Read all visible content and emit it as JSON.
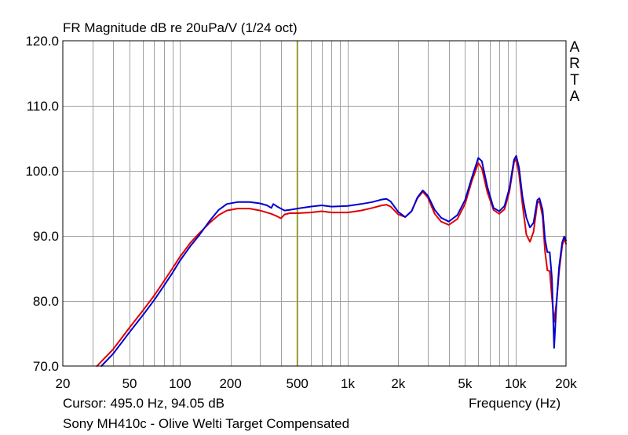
{
  "title": "FR Magnitude dB re 20uPa/V (1/24 oct)",
  "brand": "ARTA",
  "cursor_readout": "Cursor: 495.0 Hz, 94.05 dB",
  "caption": "Sony MH410c - Olive Welti Target Compensated",
  "colors": {
    "grid": "#a0a0a0",
    "cursor": "#a0a000",
    "series_red": "#e00000",
    "series_blue": "#0000d0"
  },
  "chart_data": {
    "type": "line",
    "title": "FR Magnitude dB re 20uPa/V (1/24 oct)",
    "xlabel": "Frequency (Hz)",
    "ylabel": "",
    "xscale": "log",
    "xlim": [
      20,
      20000
    ],
    "ylim": [
      70,
      120
    ],
    "grid": true,
    "x_tick_labels": [
      {
        "value": 20,
        "label": "20"
      },
      {
        "value": 50,
        "label": "50"
      },
      {
        "value": 100,
        "label": "100"
      },
      {
        "value": 200,
        "label": "200"
      },
      {
        "value": 500,
        "label": "500"
      },
      {
        "value": 1000,
        "label": "1k"
      },
      {
        "value": 2000,
        "label": "2k"
      },
      {
        "value": 5000,
        "label": "5k"
      },
      {
        "value": 10000,
        "label": "10k"
      },
      {
        "value": 20000,
        "label": "20k"
      }
    ],
    "y_tick_labels": [
      {
        "value": 70,
        "label": "70.0"
      },
      {
        "value": 80,
        "label": "80.0"
      },
      {
        "value": 90,
        "label": "90.0"
      },
      {
        "value": 100,
        "label": "100.0"
      },
      {
        "value": 110,
        "label": "110.0"
      },
      {
        "value": 120,
        "label": "120.0"
      }
    ],
    "cursor": {
      "x": 495.0,
      "y": 94.05
    },
    "series": [
      {
        "color": "#e00000",
        "points": [
          [
            32,
            70
          ],
          [
            40,
            72.6
          ],
          [
            50,
            75.9
          ],
          [
            60,
            78.5
          ],
          [
            70,
            80.8
          ],
          [
            80,
            83
          ],
          [
            90,
            85
          ],
          [
            100,
            86.8
          ],
          [
            115,
            88.9
          ],
          [
            130,
            90.4
          ],
          [
            150,
            92
          ],
          [
            170,
            93.2
          ],
          [
            190,
            93.9
          ],
          [
            220,
            94.2
          ],
          [
            260,
            94.2
          ],
          [
            300,
            93.9
          ],
          [
            350,
            93.4
          ],
          [
            380,
            93
          ],
          [
            400,
            92.7
          ],
          [
            420,
            93.3
          ],
          [
            450,
            93.5
          ],
          [
            500,
            93.5
          ],
          [
            600,
            93.6
          ],
          [
            700,
            93.8
          ],
          [
            800,
            93.6
          ],
          [
            1000,
            93.6
          ],
          [
            1200,
            93.9
          ],
          [
            1400,
            94.3
          ],
          [
            1600,
            94.7
          ],
          [
            1700,
            94.8
          ],
          [
            1800,
            94.5
          ],
          [
            2000,
            93.3
          ],
          [
            2200,
            92.9
          ],
          [
            2400,
            93.8
          ],
          [
            2600,
            95.8
          ],
          [
            2800,
            96.8
          ],
          [
            3000,
            95.9
          ],
          [
            3300,
            93.4
          ],
          [
            3600,
            92.2
          ],
          [
            4000,
            91.7
          ],
          [
            4500,
            92.6
          ],
          [
            5000,
            94.9
          ],
          [
            5500,
            98.5
          ],
          [
            6000,
            101.2
          ],
          [
            6300,
            100.4
          ],
          [
            6800,
            96.7
          ],
          [
            7400,
            94
          ],
          [
            8000,
            93.4
          ],
          [
            8600,
            94.1
          ],
          [
            9200,
            96.8
          ],
          [
            9800,
            101.3
          ],
          [
            10100,
            101.8
          ],
          [
            10500,
            99.5
          ],
          [
            11000,
            94.9
          ],
          [
            11600,
            90.2
          ],
          [
            12200,
            89.1
          ],
          [
            12800,
            90.6
          ],
          [
            13500,
            95
          ],
          [
            13900,
            95.4
          ],
          [
            14500,
            93
          ],
          [
            15000,
            87.6
          ],
          [
            15500,
            84.7
          ],
          [
            16000,
            84.6
          ],
          [
            16500,
            80.5
          ],
          [
            17000,
            76.8
          ],
          [
            17500,
            79.5
          ],
          [
            18200,
            84.5
          ],
          [
            19000,
            88.5
          ],
          [
            19500,
            89.6
          ],
          [
            20000,
            88.8
          ]
        ]
      },
      {
        "color": "#0000d0",
        "points": [
          [
            34,
            70
          ],
          [
            40,
            71.9
          ],
          [
            50,
            75.2
          ],
          [
            60,
            77.8
          ],
          [
            70,
            80.1
          ],
          [
            80,
            82.3
          ],
          [
            90,
            84.3
          ],
          [
            100,
            86.2
          ],
          [
            115,
            88.4
          ],
          [
            130,
            90.1
          ],
          [
            150,
            92.3
          ],
          [
            170,
            94
          ],
          [
            190,
            94.9
          ],
          [
            220,
            95.2
          ],
          [
            260,
            95.2
          ],
          [
            300,
            95
          ],
          [
            330,
            94.7
          ],
          [
            350,
            94.3
          ],
          [
            360,
            94.9
          ],
          [
            380,
            94.5
          ],
          [
            420,
            93.9
          ],
          [
            450,
            94
          ],
          [
            500,
            94.2
          ],
          [
            600,
            94.5
          ],
          [
            700,
            94.7
          ],
          [
            800,
            94.5
          ],
          [
            1000,
            94.6
          ],
          [
            1200,
            94.9
          ],
          [
            1400,
            95.2
          ],
          [
            1600,
            95.6
          ],
          [
            1700,
            95.7
          ],
          [
            1800,
            95.3
          ],
          [
            2000,
            93.7
          ],
          [
            2200,
            92.9
          ],
          [
            2400,
            93.8
          ],
          [
            2600,
            95.9
          ],
          [
            2800,
            97
          ],
          [
            3000,
            96.2
          ],
          [
            3300,
            94
          ],
          [
            3600,
            92.8
          ],
          [
            4000,
            92.2
          ],
          [
            4500,
            93.2
          ],
          [
            5000,
            95.5
          ],
          [
            5500,
            99
          ],
          [
            6000,
            102
          ],
          [
            6300,
            101.5
          ],
          [
            6800,
            97.5
          ],
          [
            7400,
            94.3
          ],
          [
            8000,
            93.8
          ],
          [
            8600,
            94.6
          ],
          [
            9200,
            97.3
          ],
          [
            9800,
            101.7
          ],
          [
            10100,
            102.3
          ],
          [
            10500,
            100.5
          ],
          [
            11000,
            96.1
          ],
          [
            11600,
            92.8
          ],
          [
            12200,
            91.3
          ],
          [
            12800,
            92
          ],
          [
            13500,
            95.5
          ],
          [
            13900,
            95.8
          ],
          [
            14500,
            94
          ],
          [
            15000,
            89.5
          ],
          [
            15500,
            87.5
          ],
          [
            16000,
            87.5
          ],
          [
            16500,
            83.5
          ],
          [
            17000,
            72.8
          ],
          [
            17500,
            79
          ],
          [
            18200,
            85.2
          ],
          [
            19000,
            89
          ],
          [
            19500,
            89.9
          ],
          [
            20000,
            89.3
          ]
        ]
      }
    ]
  }
}
